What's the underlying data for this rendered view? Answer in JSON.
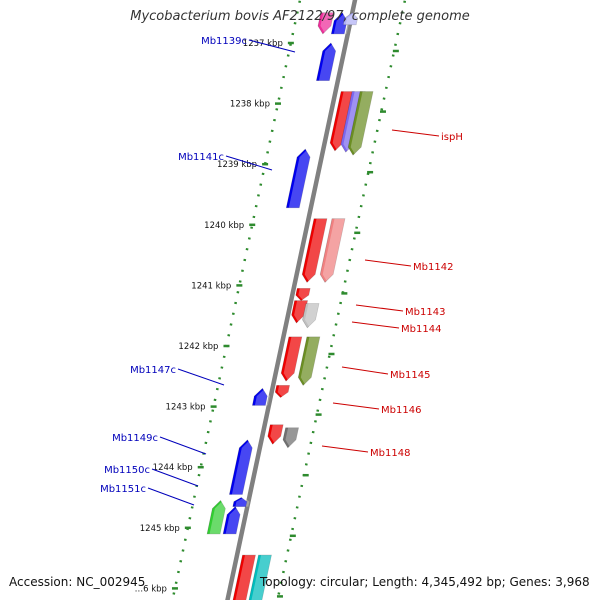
{
  "title": "Mycobacterium bovis AF2122/97, complete genome",
  "footer": {
    "accession": "Accession: NC_002945",
    "summary": "Topology: circular; Length: 4,345,492 bp; Genes: 3,968"
  },
  "colors": {
    "backbone": "#808080",
    "tick": "#2e8b2e",
    "forward_label": "#cc0000",
    "reverse_label": "#0000bb"
  },
  "scale": {
    "unit": "kbp",
    "ticks": [
      {
        "kbp": 1237,
        "label": "1237 kbp"
      },
      {
        "kbp": 1238,
        "label": "1238 kbp"
      },
      {
        "kbp": 1239,
        "label": "1239 kbp"
      },
      {
        "kbp": 1240,
        "label": "1240 kbp"
      },
      {
        "kbp": 1241,
        "label": "1241 kbp"
      },
      {
        "kbp": 1242,
        "label": "1242 kbp"
      },
      {
        "kbp": 1243,
        "label": "1243 kbp"
      },
      {
        "kbp": 1244,
        "label": "1244 kbp"
      },
      {
        "kbp": 1245,
        "label": "1245 kbp"
      },
      {
        "kbp": 1246,
        "label": "…6 kbp"
      }
    ]
  },
  "genes": [
    {
      "id": "g-top-pink",
      "strand": "forward",
      "kbp_start": 1236.5,
      "kbp_end": 1236.85,
      "color": "#ee2d9a",
      "label": ""
    },
    {
      "id": "g-top-blue",
      "strand": "reverse",
      "kbp_start": 1236.5,
      "kbp_end": 1236.85,
      "color": "#0000ee",
      "label": ""
    },
    {
      "id": "g-top-lav",
      "strand": "reverse",
      "kbp_start": 1236.5,
      "kbp_end": 1236.7,
      "color": "#b0b0f5",
      "label": ""
    },
    {
      "id": "g-mb1139c",
      "strand": "reverse",
      "kbp_start": 1237.0,
      "kbp_end": 1237.62,
      "color": "#0000ee",
      "label": "Mb1139c"
    },
    {
      "id": "g-isph",
      "strand": "forward",
      "kbp_start": 1237.8,
      "kbp_end": 1238.78,
      "color": "#ee0000",
      "label": "ispH"
    },
    {
      "id": "g-purple",
      "strand": "forward",
      "kbp_start": 1237.8,
      "kbp_end": 1238.8,
      "color": "#7b68ee",
      "label": ""
    },
    {
      "id": "g-olive1",
      "strand": "forward",
      "kbp_start": 1237.8,
      "kbp_end": 1238.85,
      "color": "#6b8e23",
      "label": ""
    },
    {
      "id": "g-mb1141c",
      "strand": "reverse",
      "kbp_start": 1238.75,
      "kbp_end": 1239.72,
      "color": "#0000ee",
      "label": "Mb1141c"
    },
    {
      "id": "g-mb1142",
      "strand": "forward",
      "kbp_start": 1239.9,
      "kbp_end": 1240.95,
      "color": "#ee0000",
      "label": "Mb1142"
    },
    {
      "id": "g-pink2",
      "strand": "forward",
      "kbp_start": 1239.9,
      "kbp_end": 1240.95,
      "color": "#f08080",
      "label": ""
    },
    {
      "id": "g-mb1143",
      "strand": "forward",
      "kbp_start": 1241.05,
      "kbp_end": 1241.25,
      "color": "#ee0000",
      "label": "Mb1143"
    },
    {
      "id": "g-mb1144",
      "strand": "forward",
      "kbp_start": 1241.25,
      "kbp_end": 1241.62,
      "color": "#ee0000",
      "label": "Mb1144"
    },
    {
      "id": "g-grey1",
      "strand": "forward",
      "kbp_start": 1241.3,
      "kbp_end": 1241.7,
      "color": "#c0c0c0",
      "label": ""
    },
    {
      "id": "g-mb1145",
      "strand": "forward",
      "kbp_start": 1241.85,
      "kbp_end": 1242.58,
      "color": "#ee0000",
      "label": "Mb1145"
    },
    {
      "id": "g-olive2",
      "strand": "forward",
      "kbp_start": 1241.85,
      "kbp_end": 1242.65,
      "color": "#6b8e23",
      "label": ""
    },
    {
      "id": "g-mb1147c",
      "strand": "reverse",
      "kbp_start": 1242.7,
      "kbp_end": 1242.98,
      "color": "#0000ee",
      "label": "Mb1147c"
    },
    {
      "id": "g-mb1146",
      "strand": "forward",
      "kbp_start": 1242.65,
      "kbp_end": 1242.85,
      "color": "#ee0000",
      "label": "Mb1146"
    },
    {
      "id": "g-mb1148",
      "strand": "forward",
      "kbp_start": 1243.3,
      "kbp_end": 1243.62,
      "color": "#ee0000",
      "label": "Mb1148"
    },
    {
      "id": "g-grey2",
      "strand": "forward",
      "kbp_start": 1243.35,
      "kbp_end": 1243.68,
      "color": "#707070",
      "label": ""
    },
    {
      "id": "g-mb1149c",
      "strand": "reverse",
      "kbp_start": 1243.55,
      "kbp_end": 1244.45,
      "color": "#0000ee",
      "label": "Mb1149c"
    },
    {
      "id": "g-mb1150c",
      "strand": "reverse",
      "kbp_start": 1244.5,
      "kbp_end": 1244.65,
      "color": "#0000ee",
      "label": "Mb1150c"
    },
    {
      "id": "g-mb1151c",
      "strand": "reverse",
      "kbp_start": 1244.65,
      "kbp_end": 1245.1,
      "color": "#0000ee",
      "label": "Mb1151c"
    },
    {
      "id": "g-green",
      "strand": "reverse",
      "kbp_start": 1244.55,
      "kbp_end": 1245.1,
      "color": "#32cd32",
      "label": ""
    },
    {
      "id": "g-bottom-red",
      "strand": "forward",
      "kbp_start": 1245.45,
      "kbp_end": 1246.4,
      "color": "#ee0000",
      "label": ""
    },
    {
      "id": "g-bottom-cyan",
      "strand": "forward",
      "kbp_start": 1245.45,
      "kbp_end": 1246.4,
      "color": "#00bcbc",
      "label": ""
    }
  ]
}
